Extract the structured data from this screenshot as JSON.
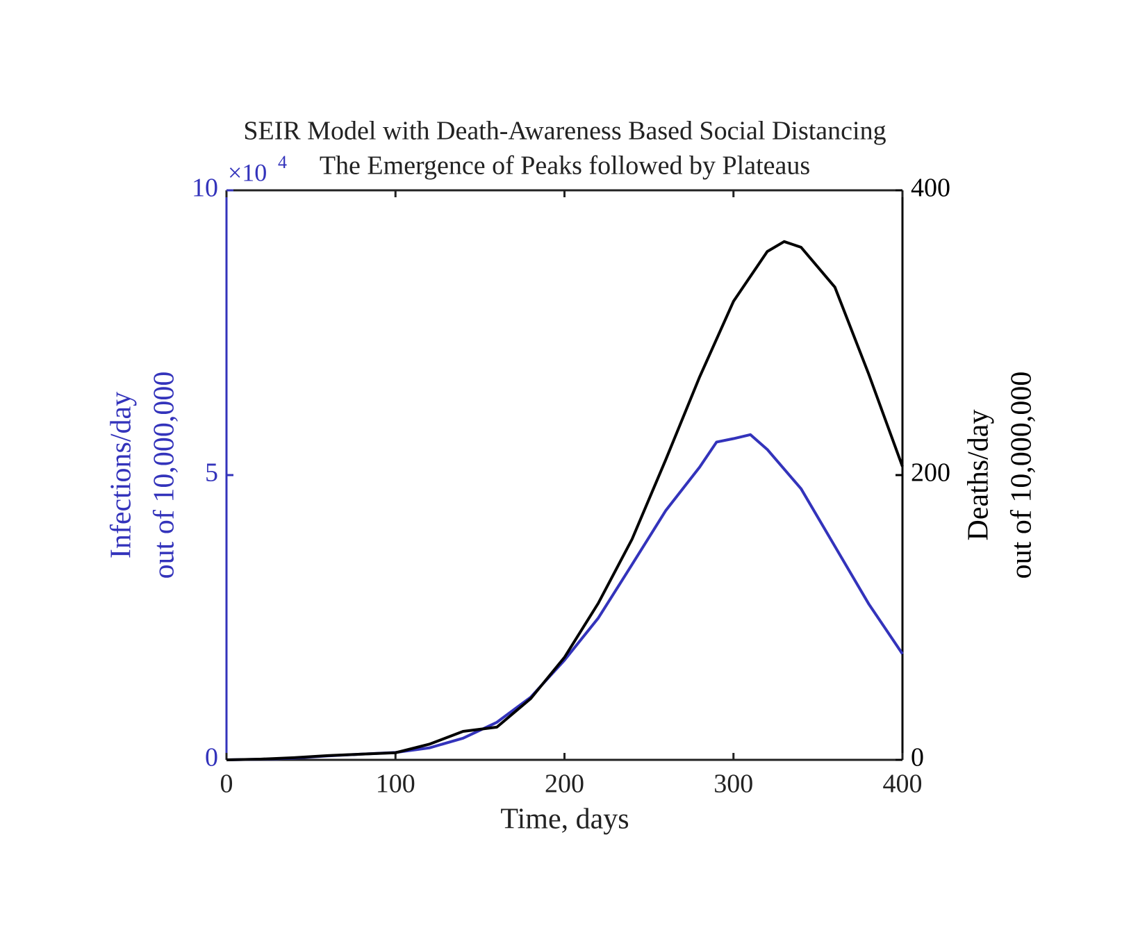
{
  "chart_data": {
    "type": "line",
    "title": [
      "SEIR Model with Death-Awareness Based Social Distancing",
      "The Emergence of Peaks followed by Plateaus"
    ],
    "xlabel": "Time, days",
    "ylabel": [
      "Infections/day",
      "out of 10,000,000"
    ],
    "y2label": [
      "Deaths/day",
      "out of 10,000,000"
    ],
    "y_multiplier": {
      "base": "×10",
      "exponent": "4"
    },
    "xlim": [
      0,
      400
    ],
    "xticks": [
      0,
      100,
      200,
      300,
      400
    ],
    "ylim": [
      0,
      10
    ],
    "yticks": [
      0,
      5,
      10
    ],
    "y2lim": [
      0,
      400
    ],
    "y2ticks": [
      0,
      200,
      400
    ],
    "y_color": "#3333bb",
    "y2_color": "#000000",
    "series": [
      {
        "name": "Infections/day",
        "color": "#3333bb",
        "axis": "y",
        "x": [
          0,
          20,
          40,
          60,
          80,
          100,
          120,
          140,
          160,
          180,
          200,
          220,
          240,
          260,
          280,
          290,
          300,
          310,
          320,
          340,
          360,
          380,
          400
        ],
        "values": [
          0,
          0.01,
          0.03,
          0.07,
          0.1,
          0.13,
          0.21,
          0.38,
          0.66,
          1.1,
          1.75,
          2.49,
          3.43,
          4.38,
          5.14,
          5.58,
          5.64,
          5.71,
          5.45,
          4.76,
          3.75,
          2.74,
          1.86
        ]
      },
      {
        "name": "Deaths/day",
        "color": "#000000",
        "axis": "y2",
        "x": [
          0,
          20,
          40,
          60,
          80,
          100,
          120,
          140,
          160,
          180,
          200,
          220,
          240,
          260,
          280,
          300,
          320,
          330,
          340,
          360,
          380,
          400
        ],
        "values": [
          0,
          0.5,
          1.5,
          3,
          4,
          5,
          11,
          20,
          23,
          43,
          72,
          110,
          155,
          211,
          269,
          322,
          357,
          364,
          360,
          332,
          271,
          206
        ]
      }
    ]
  }
}
